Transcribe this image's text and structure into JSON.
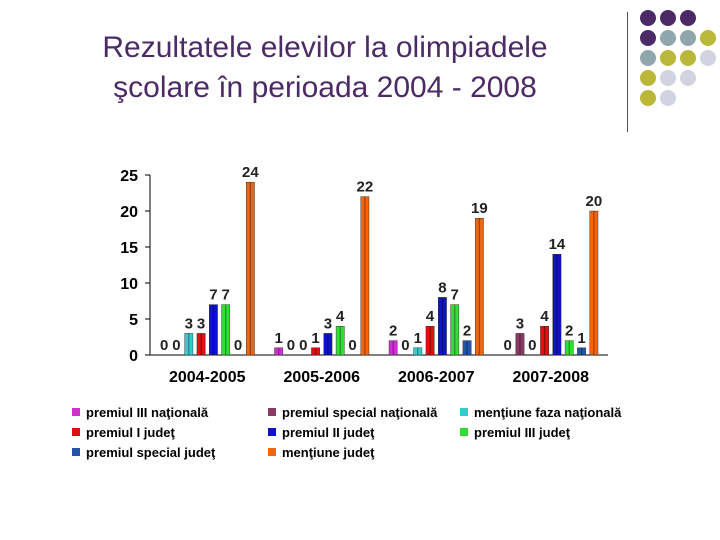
{
  "slide": {
    "title_line1": "Rezultatele elevilor la olimpiadele",
    "title_line2": "şcolare în perioada 2004 - 2008",
    "accent_purple": "#4b2a66",
    "dot_colors": [
      "#4b2a66",
      "#8fa6ad",
      "#b9b83a",
      "#d2d3e0"
    ]
  },
  "chart_data": {
    "type": "bar",
    "title": "",
    "xlabel": "",
    "ylabel": "",
    "ylim": [
      0,
      25
    ],
    "yticks": [
      "0",
      "5",
      "10",
      "15",
      "20",
      "25"
    ],
    "categories": [
      "2004-2005",
      "2005-2006",
      "2006-2007",
      "2007-2008"
    ],
    "series": [
      {
        "name": "premiul III naţională",
        "color": "#cc33cc",
        "values": [
          0,
          1,
          2,
          0
        ]
      },
      {
        "name": "premiul special naţională",
        "color": "#8b3a62",
        "values": [
          0,
          0,
          0,
          3
        ]
      },
      {
        "name": "menţiune faza naţională",
        "color": "#33cccc",
        "values": [
          3,
          0,
          1,
          0
        ]
      },
      {
        "name": "premiul I judeţ",
        "color": "#dd1111",
        "values": [
          3,
          1,
          4,
          4
        ]
      },
      {
        "name": "premiul II judeţ",
        "color": "#1111cc",
        "values": [
          7,
          3,
          8,
          14
        ]
      },
      {
        "name": "premiul III judeţ",
        "color": "#33dd33",
        "values": [
          7,
          4,
          7,
          2
        ]
      },
      {
        "name": "premiul special judeţ",
        "color": "#2255aa",
        "values": [
          0,
          0,
          2,
          1
        ]
      },
      {
        "name": "menţiune judeţ",
        "color": "#ee6611",
        "values": [
          24,
          22,
          19,
          20
        ]
      }
    ]
  }
}
